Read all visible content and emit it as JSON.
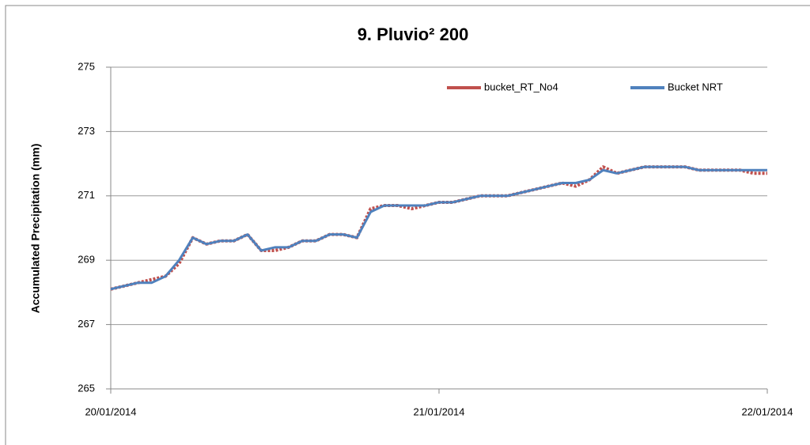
{
  "chart_data": {
    "type": "line",
    "title": "9. Pluvio² 200",
    "y_label": "Accumulated Precipitation (mm)",
    "categories": [
      "20/01/2014",
      null,
      null,
      null,
      null,
      null,
      null,
      null,
      null,
      null,
      null,
      null,
      null,
      null,
      null,
      null,
      null,
      null,
      null,
      null,
      null,
      null,
      null,
      null,
      "21/01/2014",
      null,
      null,
      null,
      null,
      null,
      null,
      null,
      null,
      null,
      null,
      null,
      null,
      null,
      null,
      null,
      null,
      null,
      null,
      null,
      null,
      null,
      null,
      null,
      "22/01/2014"
    ],
    "series": [
      {
        "name": "bucket_RT_No4",
        "color": "#c0504d",
        "values": [
          268.1,
          268.2,
          268.3,
          268.4,
          268.5,
          268.9,
          269.7,
          269.5,
          269.6,
          269.6,
          269.8,
          269.3,
          269.3,
          269.4,
          269.6,
          269.6,
          269.8,
          269.8,
          269.7,
          270.6,
          270.7,
          270.7,
          270.6,
          270.7,
          270.8,
          270.8,
          270.9,
          271.0,
          271.0,
          271.0,
          271.1,
          271.2,
          271.3,
          271.4,
          271.3,
          271.5,
          271.9,
          271.7,
          271.8,
          271.9,
          271.9,
          271.9,
          271.9,
          271.8,
          271.8,
          271.8,
          271.8,
          271.7,
          271.7
        ]
      },
      {
        "name": "Bucket NRT",
        "color": "#4f81bd",
        "values": [
          268.1,
          268.2,
          268.3,
          268.3,
          268.5,
          269.0,
          269.7,
          269.5,
          269.6,
          269.6,
          269.8,
          269.3,
          269.4,
          269.4,
          269.6,
          269.6,
          269.8,
          269.8,
          269.7,
          270.5,
          270.7,
          270.7,
          270.7,
          270.7,
          270.8,
          270.8,
          270.9,
          271.0,
          271.0,
          271.0,
          271.1,
          271.2,
          271.3,
          271.4,
          271.4,
          271.5,
          271.8,
          271.7,
          271.8,
          271.9,
          271.9,
          271.9,
          271.9,
          271.8,
          271.8,
          271.8,
          271.8,
          271.8,
          271.8
        ]
      }
    ],
    "ylim": [
      265,
      275
    ],
    "yticks": [
      265,
      267,
      269,
      271,
      273,
      275
    ],
    "grid": true,
    "legend": "top-right"
  }
}
